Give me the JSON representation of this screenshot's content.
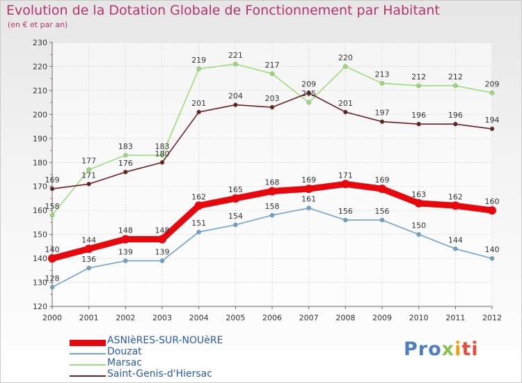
{
  "chart_data": {
    "type": "line",
    "title": "Evolution de la Dotation Globale de Fonctionnement par Habitant",
    "subtitle": "(en € et par an)",
    "xlabel": "",
    "ylabel": "",
    "categories": [
      "2000",
      "2001",
      "2002",
      "2003",
      "2004",
      "2005",
      "2006",
      "2007",
      "2008",
      "2009",
      "2010",
      "2011",
      "2012"
    ],
    "ylim": [
      120,
      230
    ],
    "yticks": [
      120,
      130,
      140,
      150,
      160,
      170,
      180,
      190,
      200,
      210,
      220,
      230
    ],
    "grid": true,
    "legend_position": "bottom-left",
    "series": [
      {
        "name": "ASNIèRES-SUR-NOUèRE",
        "color": "#e8070c",
        "values": [
          140,
          144,
          148,
          148,
          162,
          165,
          168,
          169,
          171,
          169,
          163,
          162,
          160
        ]
      },
      {
        "name": "Douzat",
        "color": "#6fa0cf",
        "values": [
          128,
          136,
          139,
          139,
          151,
          154,
          158,
          161,
          156,
          156,
          150,
          144,
          140
        ]
      },
      {
        "name": "Marsac",
        "color": "#9bdc7b",
        "values": [
          158,
          177,
          183,
          183,
          219,
          221,
          217,
          205,
          220,
          213,
          212,
          212,
          209
        ]
      },
      {
        "name": "Saint-Genis-d'Hiersac",
        "color": "#6b1f23",
        "values": [
          169,
          171,
          176,
          180,
          201,
          204,
          203,
          209,
          201,
          197,
          196,
          196,
          194
        ]
      }
    ]
  },
  "logo": {
    "p1": "Pro",
    "p2": "x",
    "p3": "i",
    "p4": "ti"
  }
}
